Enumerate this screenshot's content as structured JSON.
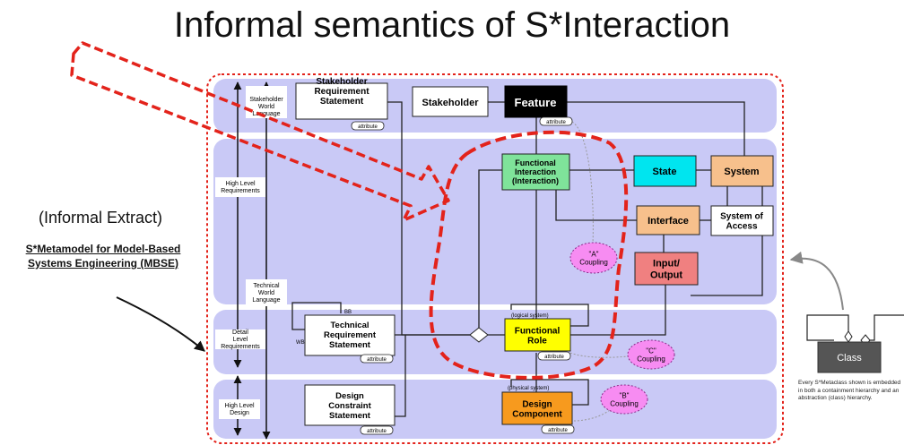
{
  "title": "Informal semantics of S*Interaction",
  "left": {
    "informal_extract": "(Informal Extract)",
    "metamodel": "S*Metamodel for Model-Based Systems Engineering (MBSE)"
  },
  "lanes": {
    "stakeholder_world_language": "Stakeholder World Language",
    "high_level_requirements": "High Level Requirements",
    "technical_world_language": "Technical World Language",
    "detail_level_requirements": "Detail Level Requirements",
    "high_level_design": "High Level Design"
  },
  "boxes": {
    "stakeholder_requirement_statement": "Stakeholder Requirement Statement",
    "stakeholder": "Stakeholder",
    "feature": "Feature",
    "functional_interaction": "Functional Interaction (Interaction)",
    "state": "State",
    "system": "System",
    "interface": "Interface",
    "system_of_access": "System of Access",
    "input_output": "Input/ Output",
    "technical_requirement_statement": "Technical Requirement Statement",
    "functional_role": "Functional Role",
    "design_constraint_statement": "Design Constraint Statement",
    "design_component": "Design Component"
  },
  "couplings": {
    "a": "\"A\" Coupling",
    "c": "\"C\" Coupling",
    "b": "\"B\" Coupling"
  },
  "small_labels": {
    "attribute": "attribute",
    "bb": "BB",
    "wb": "WB",
    "logical_system": "(logical system)",
    "physical_system": "(physical system)"
  },
  "legend": {
    "class": "Class",
    "note": "Every S*Metaclass shown is embedded in both a containment hierarchy and an abstraction (class) hierarchy."
  },
  "colors": {
    "lane_fill": "#c9c9f6",
    "highlight_red": "#e3231b",
    "feature_fill": "#000000",
    "functional_interaction_fill": "#7fe39a",
    "state_fill": "#00e5ef",
    "system_fill": "#f7c08c",
    "interface_fill": "#f7c08c",
    "input_output_fill": "#f08080",
    "functional_role_fill": "#ffff00",
    "design_component_fill": "#f79a1e",
    "coupling_fill": "#f78cf2",
    "class_fill": "#555555"
  }
}
